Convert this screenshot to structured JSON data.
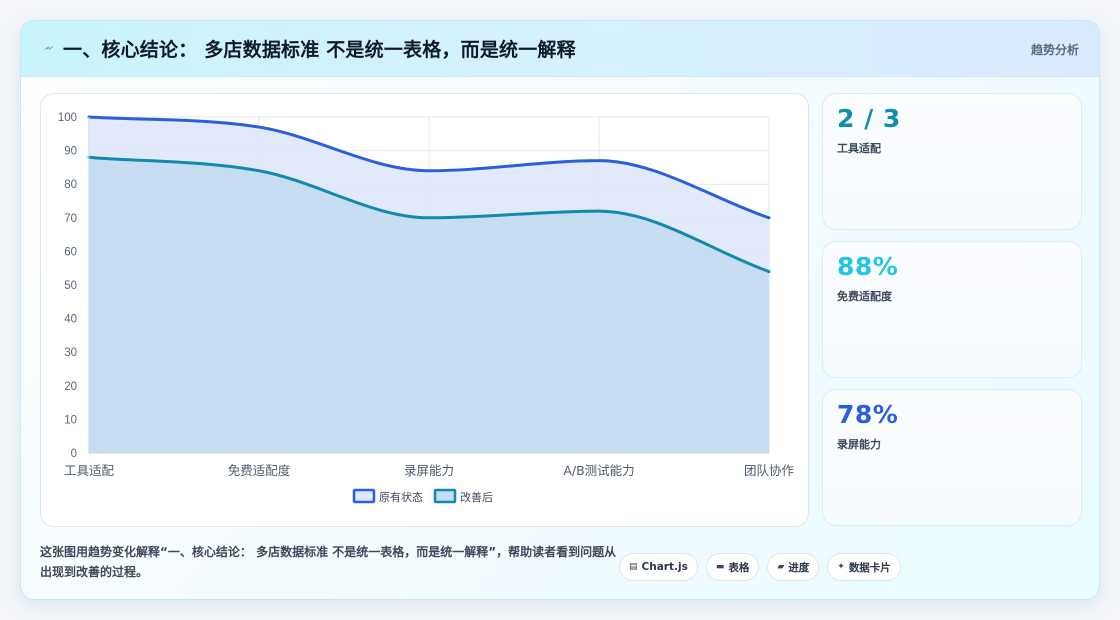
{
  "header": {
    "title": "一、核心结论： 多店数据标准 不是统一表格，而是统一解释",
    "tag": "趋势分析"
  },
  "chart_data": {
    "type": "area",
    "categories": [
      "工具适配",
      "免费适配度",
      "录屏能力",
      "A/B测试能力",
      "团队协作"
    ],
    "series": [
      {
        "name": "原有状态",
        "values": [
          100,
          97,
          84,
          87,
          70
        ],
        "color": "#2b5fd9",
        "fill": "#dfe8fb"
      },
      {
        "name": "改善后",
        "values": [
          88,
          84,
          70,
          72,
          54
        ],
        "color": "#138aad",
        "fill": "#c4ddf1"
      }
    ],
    "ylim": [
      0,
      100
    ],
    "yticks": [
      0,
      10,
      20,
      30,
      40,
      50,
      60,
      70,
      80,
      90,
      100
    ],
    "grid": true,
    "legend": "bottom"
  },
  "stats": [
    {
      "value": "2 / 3",
      "label": "工具适配",
      "color": "#0e8fae"
    },
    {
      "value": "88%",
      "label": "免费适配度",
      "color": "#22c6e0"
    },
    {
      "value": "78%",
      "label": "录屏能力",
      "color": "#2b5fd9"
    }
  ],
  "footer": {
    "description": "这张图用趋势变化解释“一、核心结论： 多店数据标准 不是统一表格，而是统一解释”，帮助读者看到问题从出现到改善的过程。",
    "pills": [
      {
        "icon": "chart-icon",
        "label": "Chart.js"
      },
      {
        "icon": "table-icon",
        "label": "表格"
      },
      {
        "icon": "progress-icon",
        "label": "进度"
      },
      {
        "icon": "sparkle-icon",
        "label": "数据卡片"
      }
    ]
  }
}
